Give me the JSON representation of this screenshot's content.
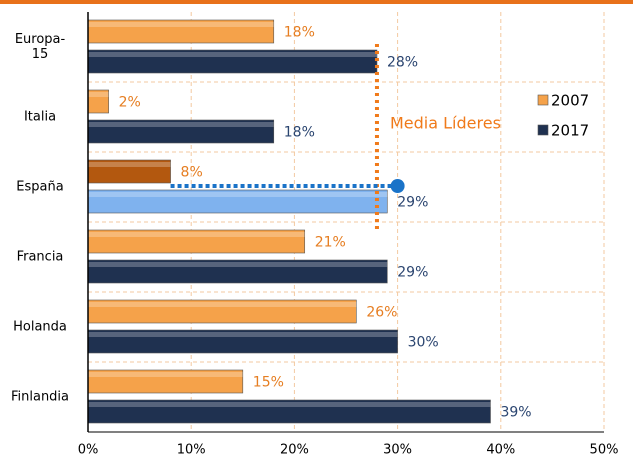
{
  "chart_data": {
    "type": "bar",
    "orientation": "horizontal",
    "categories": [
      "Europa-\n15",
      "Italia",
      "España",
      "Francia",
      "Holanda",
      "Finlandia"
    ],
    "series": [
      {
        "name": "2007",
        "color": "#f5a24a",
        "label_color": "#e67e22",
        "colors": [
          "#f5a24a",
          "#f5a24a",
          "#b3580f",
          "#f5a24a",
          "#f5a24a",
          "#f5a24a"
        ],
        "values": [
          18,
          2,
          8,
          21,
          26,
          15
        ],
        "value_labels": [
          "18%",
          "2%",
          "8%",
          "21%",
          "26%",
          "15%"
        ]
      },
      {
        "name": "2017",
        "color": "#1f3150",
        "label_color": "#2b4570",
        "colors": [
          "#1f3150",
          "#1f3150",
          "#7fb2ee",
          "#1f3150",
          "#1f3150",
          "#1f3150"
        ],
        "values": [
          28,
          18,
          29,
          29,
          30,
          39
        ],
        "value_labels": [
          "28%",
          "18%",
          "29%",
          "29%",
          "30%",
          "39%"
        ]
      }
    ],
    "xlim": [
      0,
      50
    ],
    "xticks": [
      {
        "value": 0,
        "label": "0%"
      },
      {
        "value": 10,
        "label": "10%"
      },
      {
        "value": 20,
        "label": "20%"
      },
      {
        "value": 30,
        "label": "30%"
      },
      {
        "value": 40,
        "label": "40%"
      },
      {
        "value": 50,
        "label": "50%"
      }
    ],
    "grid": true,
    "legend": "right",
    "reference_line": {
      "label": "Media Líderes",
      "value": 28,
      "color": "#f07a1a"
    },
    "gap_line": {
      "from": 8,
      "to": 30,
      "color": "#1a73c8"
    }
  }
}
